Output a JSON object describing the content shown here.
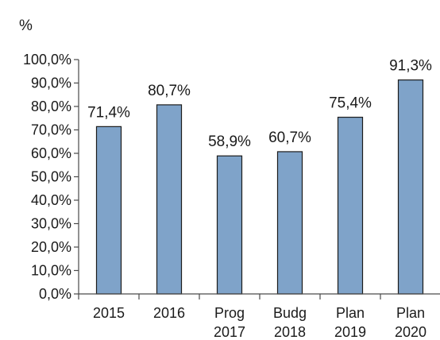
{
  "chart_data": {
    "type": "bar",
    "unit_label": "%",
    "categories": [
      [
        "2015"
      ],
      [
        "2016"
      ],
      [
        "Prog",
        "2017"
      ],
      [
        "Budg",
        "2018"
      ],
      [
        "Plan",
        "2019"
      ],
      [
        "Plan",
        "2020"
      ]
    ],
    "values": [
      71.4,
      80.7,
      58.9,
      60.7,
      75.4,
      91.3
    ],
    "data_labels": [
      "71,4%",
      "80,7%",
      "58,9%",
      "60,7%",
      "75,4%",
      "91,3%"
    ],
    "ylim": [
      0,
      100
    ],
    "yticks": [
      0,
      10,
      20,
      30,
      40,
      50,
      60,
      70,
      80,
      90,
      100
    ],
    "ytick_labels": [
      "0,0%",
      "10,0%",
      "20,0%",
      "30,0%",
      "40,0%",
      "50,0%",
      "60,0%",
      "70,0%",
      "80,0%",
      "90,0%",
      "100,0%"
    ],
    "grid": false,
    "legend": "none",
    "colors": {
      "bar_fill": "#7fa3c9",
      "bar_stroke": "#1c1c1c",
      "axis": "#4a4a4a"
    }
  }
}
